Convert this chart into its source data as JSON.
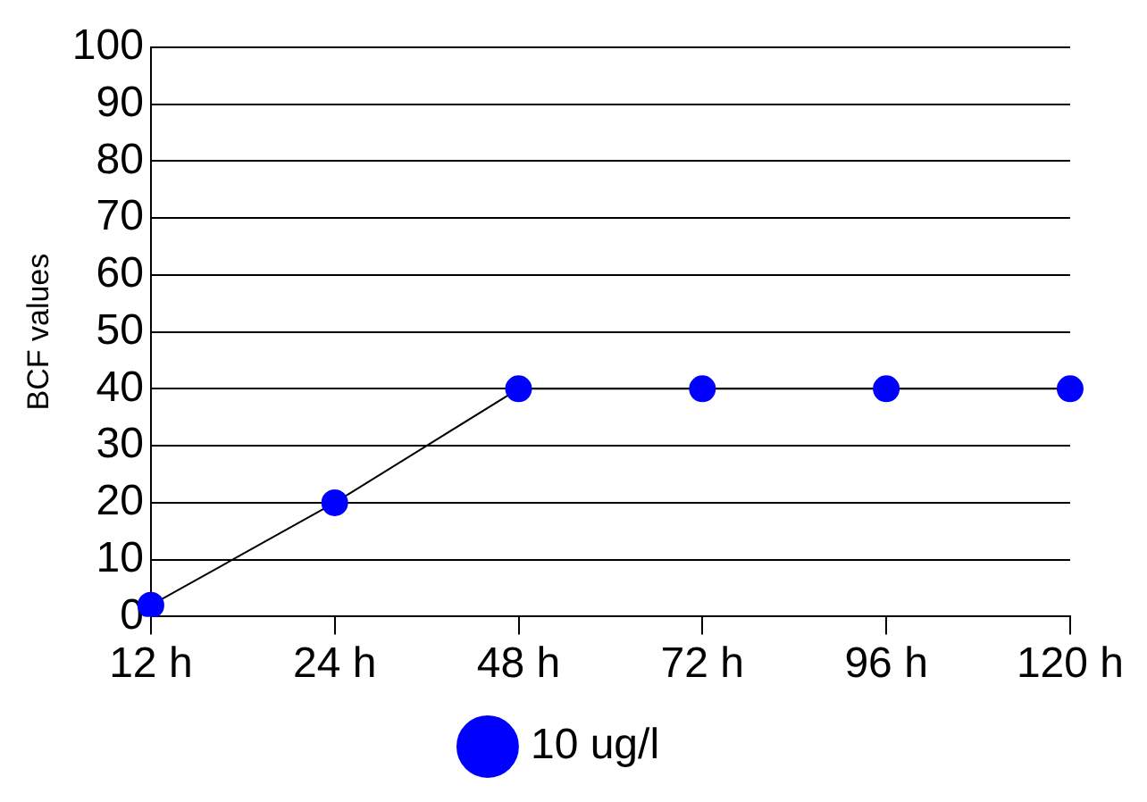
{
  "chart_data": {
    "type": "line",
    "ylabel": "BCF values",
    "categories": [
      "12 h",
      "24 h",
      "48 h",
      "72 h",
      "96 h",
      "120 h"
    ],
    "series": [
      {
        "name": "10 ug/l",
        "color": "#0000ff",
        "values": [
          2,
          20,
          40,
          40,
          40,
          40
        ]
      }
    ],
    "ylim": [
      0,
      100
    ],
    "yticks": [
      0,
      10,
      20,
      30,
      40,
      50,
      60,
      70,
      80,
      90,
      100
    ],
    "grid": "y",
    "legend": "bottom",
    "marker": "circle",
    "line_style": "solid"
  }
}
